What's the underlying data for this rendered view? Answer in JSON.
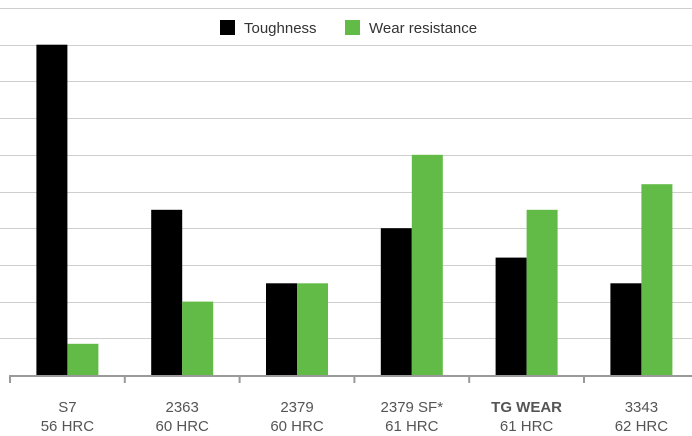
{
  "chart_data": {
    "type": "bar",
    "categories": [
      {
        "name": "S7",
        "sub": "56 HRC",
        "bold": false
      },
      {
        "name": "2363",
        "sub": "60 HRC",
        "bold": false
      },
      {
        "name": "2379",
        "sub": "60 HRC",
        "bold": false
      },
      {
        "name": "2379 SF*",
        "sub": "61 HRC",
        "bold": false
      },
      {
        "name": "TG WEAR",
        "sub": "61 HRC",
        "bold": true
      },
      {
        "name": "3343",
        "sub": "62 HRC",
        "bold": false
      }
    ],
    "series": [
      {
        "name": "Toughness",
        "color": "#000000",
        "values": [
          9,
          4.5,
          2.5,
          4,
          3.2,
          2.5
        ]
      },
      {
        "name": "Wear resistance",
        "color": "#62bb46",
        "values": [
          0.85,
          2,
          2.5,
          6,
          4.5,
          5.2
        ]
      }
    ],
    "ylim": [
      0,
      10
    ],
    "grid": true,
    "y_ticks_labeled": false,
    "legend_position": "top-center"
  }
}
